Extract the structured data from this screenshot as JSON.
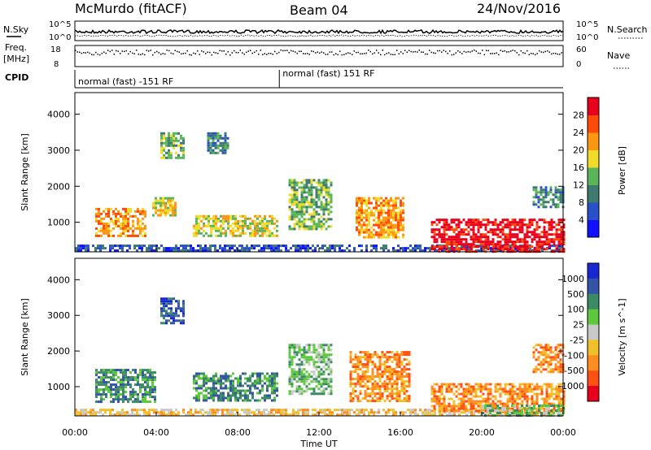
{
  "header": {
    "station": "McMurdo (fitACF)",
    "beam": "Beam 04",
    "date": "24/Nov/2016"
  },
  "side_labels": {
    "nsky": "N.Sky",
    "nsearch": "N.Search",
    "freq_line1": "Freq.",
    "freq_line2": "[MHz]",
    "nave": "Nave",
    "cpid": "CPID"
  },
  "strip_ticks": {
    "noise_left_top": "10^5",
    "noise_left_bottom": "10^0",
    "noise_right_top": "10^5",
    "noise_right_bottom": "10^0",
    "freq_top": "18",
    "freq_bottom": "8",
    "nave_top": "60",
    "nave_bottom": "0"
  },
  "cpid_segments": [
    {
      "label": "normal (fast) -151 RF",
      "start_h": 0.0,
      "end_h": 10.05
    },
    {
      "label": "normal (fast) 151 RF",
      "start_h": 10.05,
      "end_h": 24.0
    }
  ],
  "time_axis": {
    "label": "Time UT",
    "ticks": [
      "00:00",
      "04:00",
      "08:00",
      "12:00",
      "16:00",
      "20:00",
      "00:00"
    ],
    "tick_hours": [
      0,
      4,
      8,
      12,
      16,
      20,
      24
    ]
  },
  "chart_data": [
    {
      "type": "heatmap",
      "name": "power",
      "ylabel": "Slant Range [km]",
      "ylim": [
        180,
        4600
      ],
      "yticks": [
        1000,
        2000,
        3000,
        4000
      ],
      "colorbar_label": "Power [dB]",
      "colorbar_ticks": [
        "4",
        "8",
        "12",
        "16",
        "20",
        "24",
        "28"
      ],
      "colors": [
        "#1010ff",
        "#2850c8",
        "#3e7a6e",
        "#5ab45a",
        "#f0dc28",
        "#ff9610",
        "#ff4a0a",
        "#e8001c"
      ],
      "echo_regions": [
        {
          "t0": 0.0,
          "t1": 24.0,
          "r0": 180,
          "r1": 380,
          "level": 1
        },
        {
          "t0": 1.0,
          "t1": 3.5,
          "r0": 600,
          "r1": 1400,
          "level": 5
        },
        {
          "t0": 3.8,
          "t1": 5.0,
          "r0": 1200,
          "r1": 1700,
          "level": 4
        },
        {
          "t0": 4.2,
          "t1": 5.3,
          "r0": 2800,
          "r1": 3500,
          "level": 3
        },
        {
          "t0": 6.5,
          "t1": 7.5,
          "r0": 2900,
          "r1": 3500,
          "level": 2
        },
        {
          "t0": 5.8,
          "t1": 10.0,
          "r0": 600,
          "r1": 1200,
          "level": 4
        },
        {
          "t0": 10.5,
          "t1": 12.6,
          "r0": 800,
          "r1": 2200,
          "level": 3
        },
        {
          "t0": 13.8,
          "t1": 16.2,
          "r0": 600,
          "r1": 1700,
          "level": 5
        },
        {
          "t0": 17.5,
          "t1": 24.0,
          "r0": 200,
          "r1": 1100,
          "level": 7
        },
        {
          "t0": 22.5,
          "t1": 24.0,
          "r0": 1400,
          "r1": 2000,
          "level": 2
        }
      ]
    },
    {
      "type": "heatmap",
      "name": "velocity",
      "ylabel": "Slant Range [km]",
      "ylim": [
        180,
        4600
      ],
      "yticks": [
        1000,
        2000,
        3000,
        4000
      ],
      "colorbar_label": "Velocity [m s^-1]",
      "colorbar_ticks": [
        "1000",
        "500",
        "100",
        "25",
        "-25",
        "-100",
        "-500",
        "-1000"
      ],
      "colors": [
        "#1828d0",
        "#3454a8",
        "#3c8a66",
        "#5cc83c",
        "#c8c8c8",
        "#f0c028",
        "#ff8c1e",
        "#ff5014",
        "#e8001c"
      ],
      "echo_regions": [
        {
          "t0": 0.0,
          "t1": 24.0,
          "r0": 180,
          "r1": 380,
          "level": 5
        },
        {
          "t0": 1.0,
          "t1": 4.0,
          "r0": 600,
          "r1": 1500,
          "level": 2
        },
        {
          "t0": 4.2,
          "t1": 5.3,
          "r0": 2800,
          "r1": 3500,
          "level": 1
        },
        {
          "t0": 5.8,
          "t1": 10.0,
          "r0": 600,
          "r1": 1400,
          "level": 2
        },
        {
          "t0": 10.5,
          "t1": 12.6,
          "r0": 800,
          "r1": 2200,
          "level": 3
        },
        {
          "t0": 13.5,
          "t1": 16.5,
          "r0": 600,
          "r1": 2000,
          "level": 6
        },
        {
          "t0": 17.5,
          "t1": 24.0,
          "r0": 300,
          "r1": 1100,
          "level": 6
        },
        {
          "t0": 20.0,
          "t1": 24.0,
          "r0": 200,
          "r1": 500,
          "level": 3
        },
        {
          "t0": 22.5,
          "t1": 24.0,
          "r0": 1400,
          "r1": 2200,
          "level": 6
        }
      ]
    }
  ]
}
